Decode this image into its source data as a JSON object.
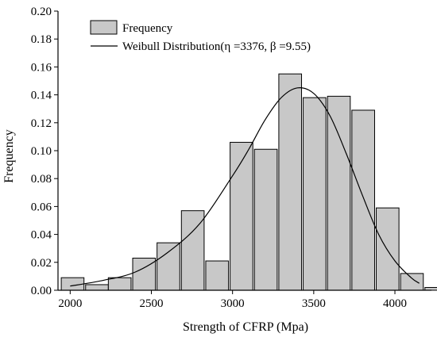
{
  "chart_data": {
    "type": "bar",
    "xlabel": "Strength of CFRP (Mpa)",
    "ylabel": "Frequency",
    "xlim": [
      1925,
      4225
    ],
    "ylim": [
      0,
      0.2
    ],
    "xticks": [
      "2000",
      "2500",
      "3000",
      "3500",
      "4000"
    ],
    "xtick_values": [
      2000,
      2500,
      3000,
      3500,
      4000
    ],
    "yticks": [
      "0.00",
      "0.02",
      "0.04",
      "0.06",
      "0.08",
      "0.10",
      "0.12",
      "0.14",
      "0.16",
      "0.18",
      "0.20"
    ],
    "ytick_values": [
      0,
      0.02,
      0.04,
      0.06,
      0.08,
      0.1,
      0.12,
      0.14,
      0.16,
      0.18,
      0.2
    ],
    "bin_width": 140,
    "bin_starts": [
      1945,
      2095,
      2235,
      2385,
      2535,
      2685,
      2835,
      2985,
      3135,
      3285,
      3435,
      3585,
      3735,
      3885,
      4035,
      4185
    ],
    "values": [
      0.009,
      0.004,
      0.009,
      0.023,
      0.034,
      0.057,
      0.021,
      0.106,
      0.101,
      0.155,
      0.138,
      0.139,
      0.129,
      0.059,
      0.012,
      0.002
    ],
    "legend_placement": "top-left",
    "series": [
      {
        "name": "Frequency",
        "type": "bar",
        "color": "#c8c8c8"
      },
      {
        "name": "Weibull Distribution(η =3376, β =9.55)",
        "type": "line",
        "color": "#000000",
        "x": [
          2000,
          2200,
          2400,
          2600,
          2800,
          3000,
          3100,
          3200,
          3300,
          3400,
          3500,
          3600,
          3700,
          3800,
          3900,
          4000,
          4100,
          4150
        ],
        "y": [
          0.003,
          0.007,
          0.013,
          0.027,
          0.048,
          0.082,
          0.101,
          0.122,
          0.138,
          0.145,
          0.141,
          0.125,
          0.098,
          0.068,
          0.04,
          0.021,
          0.009,
          0.005
        ]
      }
    ]
  }
}
